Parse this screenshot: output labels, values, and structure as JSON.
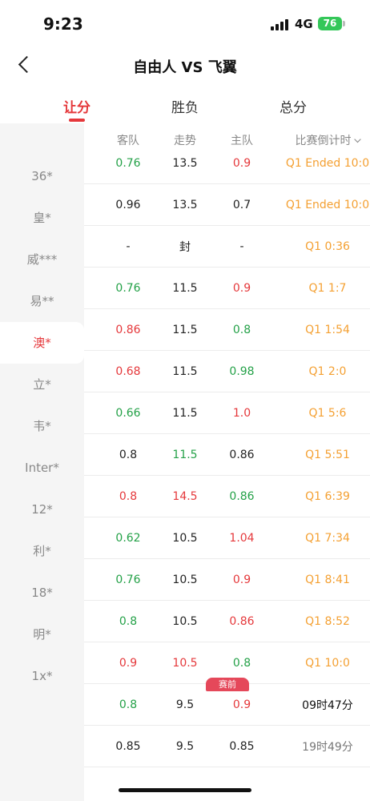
{
  "status_bar": {
    "time": "9:23",
    "network": "4G",
    "battery": "76"
  },
  "nav": {
    "title": "自由人 VS 飞翼"
  },
  "tabs": [
    {
      "label": "让分",
      "active": true
    },
    {
      "label": "胜负",
      "active": false
    },
    {
      "label": "总分",
      "active": false
    }
  ],
  "sidebar": {
    "items": [
      {
        "label": "36*",
        "active": false
      },
      {
        "label": "皇*",
        "active": false
      },
      {
        "label": "威***",
        "active": false
      },
      {
        "label": "易**",
        "active": false
      },
      {
        "label": "澳*",
        "active": true
      },
      {
        "label": "立*",
        "active": false
      },
      {
        "label": "韦*",
        "active": false
      },
      {
        "label": "Inter*",
        "active": false
      },
      {
        "label": "12*",
        "active": false
      },
      {
        "label": "利*",
        "active": false
      },
      {
        "label": "18*",
        "active": false
      },
      {
        "label": "明*",
        "active": false
      },
      {
        "label": "1x*",
        "active": false
      }
    ]
  },
  "table": {
    "headers": {
      "away": "客队",
      "trend": "走势",
      "home": "主队",
      "time": "比赛倒计时"
    },
    "rows": [
      {
        "away": "0.76",
        "away_color": "green",
        "trend": "13.5",
        "trend_color": "dark",
        "home": "0.9",
        "home_color": "red",
        "time": "Q1 Ended 10:0",
        "time_color": "orange"
      },
      {
        "away": "0.96",
        "away_color": "dark",
        "trend": "13.5",
        "trend_color": "dark",
        "home": "0.7",
        "home_color": "dark",
        "time": "Q1 Ended 10:0",
        "time_color": "orange"
      },
      {
        "away": "-",
        "away_color": "dark",
        "trend": "封",
        "trend_color": "dark",
        "home": "-",
        "home_color": "dark",
        "time": "Q1 0:36",
        "time_color": "orange"
      },
      {
        "away": "0.76",
        "away_color": "green",
        "trend": "11.5",
        "trend_color": "dark",
        "home": "0.9",
        "home_color": "red",
        "time": "Q1 1:7",
        "time_color": "orange"
      },
      {
        "away": "0.86",
        "away_color": "red",
        "trend": "11.5",
        "trend_color": "dark",
        "home": "0.8",
        "home_color": "green",
        "time": "Q1 1:54",
        "time_color": "orange"
      },
      {
        "away": "0.68",
        "away_color": "red",
        "trend": "11.5",
        "trend_color": "dark",
        "home": "0.98",
        "home_color": "green",
        "time": "Q1 2:0",
        "time_color": "orange"
      },
      {
        "away": "0.66",
        "away_color": "green",
        "trend": "11.5",
        "trend_color": "dark",
        "home": "1.0",
        "home_color": "red",
        "time": "Q1 5:6",
        "time_color": "orange"
      },
      {
        "away": "0.8",
        "away_color": "dark",
        "trend": "11.5",
        "trend_color": "green",
        "home": "0.86",
        "home_color": "dark",
        "time": "Q1 5:51",
        "time_color": "orange"
      },
      {
        "away": "0.8",
        "away_color": "red",
        "trend": "14.5",
        "trend_color": "red",
        "home": "0.86",
        "home_color": "green",
        "time": "Q1 6:39",
        "time_color": "orange"
      },
      {
        "away": "0.62",
        "away_color": "green",
        "trend": "10.5",
        "trend_color": "dark",
        "home": "1.04",
        "home_color": "red",
        "time": "Q1 7:34",
        "time_color": "orange"
      },
      {
        "away": "0.76",
        "away_color": "green",
        "trend": "10.5",
        "trend_color": "dark",
        "home": "0.9",
        "home_color": "red",
        "time": "Q1 8:41",
        "time_color": "orange"
      },
      {
        "away": "0.8",
        "away_color": "green",
        "trend": "10.5",
        "trend_color": "dark",
        "home": "0.86",
        "home_color": "red",
        "time": "Q1 8:52",
        "time_color": "orange"
      },
      {
        "away": "0.9",
        "away_color": "red",
        "trend": "10.5",
        "trend_color": "red",
        "home": "0.8",
        "home_color": "green",
        "time": "Q1 10:0",
        "time_color": "orange"
      },
      {
        "away": "0.8",
        "away_color": "green",
        "trend": "9.5",
        "trend_color": "dark",
        "home": "0.9",
        "home_color": "red",
        "time": "09时47分",
        "time_color": "black",
        "badge": "赛前"
      },
      {
        "away": "0.85",
        "away_color": "dark",
        "trend": "9.5",
        "trend_color": "dark",
        "home": "0.85",
        "home_color": "dark",
        "time": "19时49分",
        "time_color": "gray"
      }
    ]
  }
}
